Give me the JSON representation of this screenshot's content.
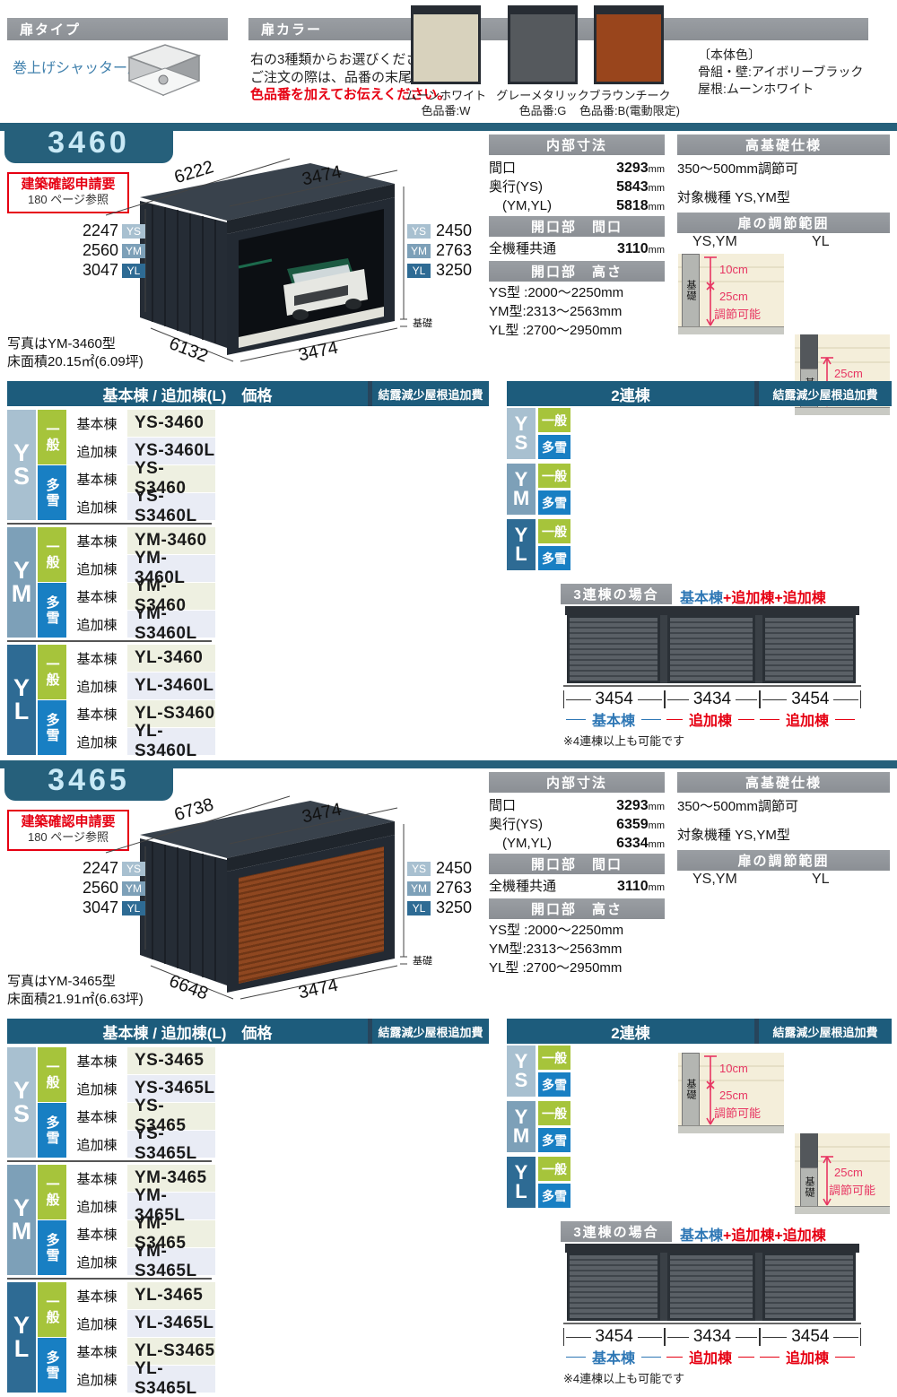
{
  "colors": {
    "teal_header": "#1d5c7c",
    "section_tab": "#26607b",
    "gray_bar": "#8f9398",
    "red": "#e60012",
    "pink": "#e73562",
    "legend_blue": "#2e77b5",
    "spine": {
      "YS": "#a8c0d0",
      "YM": "#7da0b8",
      "YL": "#2e6b94"
    },
    "badge_general": "#a6c43b",
    "badge_snow": "#187fc3",
    "row_base": "#eef0e1",
    "row_add": "#e9ecf5"
  },
  "badges": {
    "general": "一般",
    "snow": "多雪",
    "base_unit": "基本棟",
    "add_unit": "追加棟"
  },
  "unit": "mm",
  "top": {
    "door_type_header": "扉タイプ",
    "door_type_name": "巻上げシャッター扉",
    "door_color_header": "扉カラー",
    "desc_line1": "右の3種類からお選びください。",
    "desc_line2": "ご注文の際は、品番の末尾に",
    "desc_line3": "色品番を加えてお伝えください。",
    "swatches": [
      {
        "name": "ムーンホワイト",
        "code": "色品番:W",
        "hex": "#d8d2bd"
      },
      {
        "name": "グレーメタリック",
        "code": "色品番:G",
        "hex": "#55595d"
      },
      {
        "name": "ブラウンチーク",
        "code": "色品番:B(電動限定)",
        "hex": "#99451c"
      }
    ],
    "body_color_title": "〔本体色〕",
    "body_color_line1": "骨組・壁:アイボリーブラック",
    "body_color_line2": "屋根:ムーンホワイト"
  },
  "sections": [
    {
      "id": "3460",
      "permit_line1": "建築確認申請要",
      "permit_line2": "180 ページ参照",
      "photo_note": "写真はYM-3460型",
      "area_note": "床面積20.15㎡(6.09坪)",
      "diagram": {
        "depth_top": "6222",
        "width_top": "3474",
        "depth_bottom": "6132",
        "width_bottom": "3474",
        "heights_left": [
          [
            "2247",
            "YS"
          ],
          [
            "2560",
            "YM"
          ],
          [
            "3047",
            "YL"
          ]
        ],
        "heights_right": [
          [
            "YS",
            "2450"
          ],
          [
            "YM",
            "2763"
          ],
          [
            "YL",
            "3250"
          ]
        ],
        "foundation": "基礎"
      },
      "inner": {
        "header": "内部寸法",
        "rows": [
          [
            "間口",
            "3293"
          ],
          [
            "奥行(YS)",
            "5843"
          ],
          [
            "　(YM,YL)",
            "5818"
          ]
        ],
        "open_w_header": "開口部　間口",
        "open_w_label": "全機種共通",
        "open_w_value": "3110",
        "open_h_header": "開口部　高さ",
        "open_h_lines": [
          "YS型 :2000〜2250mm",
          "YM型:2313〜2563mm",
          "YL型 :2700〜2950mm"
        ]
      },
      "foundation": {
        "header": "高基礎仕様",
        "adjust": "350〜500mm調節可",
        "target": "対象機種 YS,YM型",
        "range_header": "扉の調節範囲",
        "label_left": "YS,YM",
        "label_right": "YL",
        "base": "基礎",
        "cm10": "10cm",
        "cm25": "25cm",
        "adjustable": "調節可能"
      },
      "price": {
        "header": "基本棟 / 追加棟(L)　価格",
        "extra": "結露減少屋根追加費",
        "groups": [
          {
            "key": "YS",
            "rows": [
              [
                "一般",
                "基本棟",
                "YS-3460"
              ],
              [
                "一般",
                "追加棟",
                "YS-3460L"
              ],
              [
                "多雪",
                "基本棟",
                "YS-S3460"
              ],
              [
                "多雪",
                "追加棟",
                "YS-S3460L"
              ]
            ]
          },
          {
            "key": "YM",
            "rows": [
              [
                "一般",
                "基本棟",
                "YM-3460"
              ],
              [
                "一般",
                "追加棟",
                "YM-3460L"
              ],
              [
                "多雪",
                "基本棟",
                "YM-S3460"
              ],
              [
                "多雪",
                "追加棟",
                "YM-S3460L"
              ]
            ]
          },
          {
            "key": "YL",
            "rows": [
              [
                "一般",
                "基本棟",
                "YL-3460"
              ],
              [
                "一般",
                "追加棟",
                "YL-3460L"
              ],
              [
                "多雪",
                "基本棟",
                "YL-S3460"
              ],
              [
                "多雪",
                "追加棟",
                "YL-S3460L"
              ]
            ]
          }
        ]
      },
      "duplex": {
        "header": "2連棟",
        "extra": "結露減少屋根追加費",
        "groups": [
          "YS",
          "YM",
          "YL"
        ]
      },
      "triplex": {
        "header": "3連棟の場合",
        "legend_blue": "基本棟",
        "legend_red": "+追加棟+追加棟",
        "dims": [
          "3454",
          "3434",
          "3454"
        ],
        "labels": [
          "基本棟",
          "追加棟",
          "追加棟"
        ],
        "note": "※4連棟以上も可能です"
      }
    },
    {
      "id": "3465",
      "permit_line1": "建築確認申請要",
      "permit_line2": "180 ページ参照",
      "photo_note": "写真はYM-3465型",
      "area_note": "床面積21.91㎡(6.63坪)",
      "diagram": {
        "depth_top": "6738",
        "width_top": "3474",
        "depth_bottom": "6648",
        "width_bottom": "3474",
        "heights_left": [
          [
            "2247",
            "YS"
          ],
          [
            "2560",
            "YM"
          ],
          [
            "3047",
            "YL"
          ]
        ],
        "heights_right": [
          [
            "YS",
            "2450"
          ],
          [
            "YM",
            "2763"
          ],
          [
            "YL",
            "3250"
          ]
        ],
        "foundation": "基礎"
      },
      "inner": {
        "header": "内部寸法",
        "rows": [
          [
            "間口",
            "3293"
          ],
          [
            "奥行(YS)",
            "6359"
          ],
          [
            "　(YM,YL)",
            "6334"
          ]
        ],
        "open_w_header": "開口部　間口",
        "open_w_label": "全機種共通",
        "open_w_value": "3110",
        "open_h_header": "開口部　高さ",
        "open_h_lines": [
          "YS型 :2000〜2250mm",
          "YM型:2313〜2563mm",
          "YL型 :2700〜2950mm"
        ]
      },
      "foundation": {
        "header": "高基礎仕様",
        "adjust": "350〜500mm調節可",
        "target": "対象機種 YS,YM型",
        "range_header": "扉の調節範囲",
        "label_left": "YS,YM",
        "label_right": "YL",
        "base": "基礎",
        "cm10": "10cm",
        "cm25": "25cm",
        "adjustable": "調節可能"
      },
      "price": {
        "header": "基本棟 / 追加棟(L)　価格",
        "extra": "結露減少屋根追加費",
        "groups": [
          {
            "key": "YS",
            "rows": [
              [
                "一般",
                "基本棟",
                "YS-3465"
              ],
              [
                "一般",
                "追加棟",
                "YS-3465L"
              ],
              [
                "多雪",
                "基本棟",
                "YS-S3465"
              ],
              [
                "多雪",
                "追加棟",
                "YS-S3465L"
              ]
            ]
          },
          {
            "key": "YM",
            "rows": [
              [
                "一般",
                "基本棟",
                "YM-3465"
              ],
              [
                "一般",
                "追加棟",
                "YM-3465L"
              ],
              [
                "多雪",
                "基本棟",
                "YM-S3465"
              ],
              [
                "多雪",
                "追加棟",
                "YM-S3465L"
              ]
            ]
          },
          {
            "key": "YL",
            "rows": [
              [
                "一般",
                "基本棟",
                "YL-3465"
              ],
              [
                "一般",
                "追加棟",
                "YL-3465L"
              ],
              [
                "多雪",
                "基本棟",
                "YL-S3465"
              ],
              [
                "多雪",
                "追加棟",
                "YL-S3465L"
              ]
            ]
          }
        ]
      },
      "duplex": {
        "header": "2連棟",
        "extra": "結露減少屋根追加費",
        "groups": [
          "YS",
          "YM",
          "YL"
        ]
      },
      "triplex": {
        "header": "3連棟の場合",
        "legend_blue": "基本棟",
        "legend_red": "+追加棟+追加棟",
        "dims": [
          "3454",
          "3434",
          "3454"
        ],
        "labels": [
          "基本棟",
          "追加棟",
          "追加棟"
        ],
        "note": "※4連棟以上も可能です"
      }
    }
  ]
}
